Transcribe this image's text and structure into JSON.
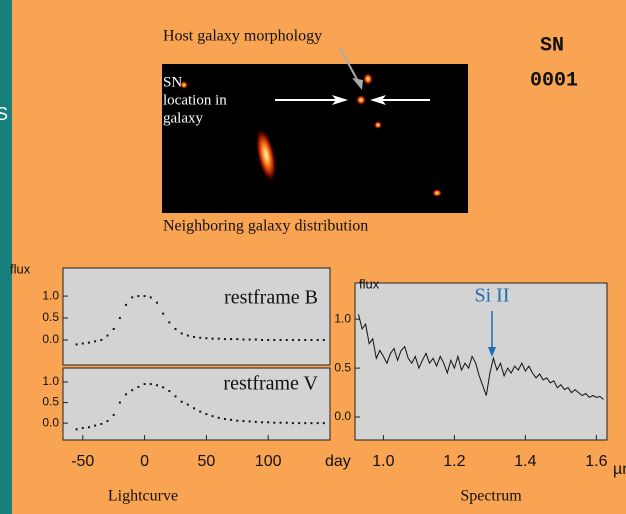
{
  "edge_text": "S",
  "header": {
    "title": "Host galaxy morphology",
    "sn_label": "SN",
    "sn_id": "0001",
    "location_label": [
      "SN",
      "location in",
      "galaxy"
    ],
    "caption": "Neighboring galaxy distribution"
  },
  "chart_data": [
    {
      "type": "scatter",
      "ylabel": "flux",
      "series": [
        {
          "name": "restframe B",
          "color": "#111111",
          "x": [
            -55,
            -50,
            -45,
            -40,
            -35,
            -30,
            -25,
            -20,
            -15,
            -10,
            -5,
            0,
            5,
            10,
            15,
            20,
            25,
            30,
            35,
            40,
            45,
            50,
            55,
            60,
            65,
            70,
            75,
            80,
            85,
            90,
            95,
            100,
            105,
            110,
            115,
            120,
            125,
            130,
            135,
            140,
            145
          ],
          "values": [
            -0.1,
            -0.08,
            -0.06,
            -0.03,
            0.0,
            0.1,
            0.25,
            0.5,
            0.8,
            0.97,
            1.0,
            1.0,
            0.97,
            0.85,
            0.6,
            0.4,
            0.25,
            0.15,
            0.1,
            0.07,
            0.05,
            0.04,
            0.03,
            0.03,
            0.02,
            0.02,
            0.02,
            0.01,
            0.01,
            0.01,
            0.0,
            0.0,
            0.0,
            0.0,
            0.0,
            0.0,
            0.0,
            0.0,
            0.0,
            0.0,
            0.0
          ]
        }
      ],
      "xlim": [
        -66,
        150
      ],
      "ylim": [
        -0.57,
        1.64
      ],
      "yticks": [
        {
          "value": 1,
          "label": "1.0"
        },
        {
          "value": 0.5,
          "label": "0.5"
        },
        {
          "value": 0,
          "label": "0.0"
        }
      ]
    },
    {
      "type": "scatter",
      "xlabel": "day",
      "caption": "Lightcurve",
      "series": [
        {
          "name": "restframe V",
          "color": "#111111",
          "x": [
            -55,
            -50,
            -45,
            -40,
            -35,
            -30,
            -25,
            -20,
            -15,
            -10,
            -5,
            0,
            5,
            10,
            15,
            20,
            25,
            30,
            35,
            40,
            45,
            50,
            55,
            60,
            65,
            70,
            75,
            80,
            85,
            90,
            95,
            100,
            105,
            110,
            115,
            120,
            125,
            130,
            135,
            140,
            145
          ],
          "values": [
            -0.15,
            -0.12,
            -0.1,
            -0.06,
            -0.02,
            0.05,
            0.2,
            0.5,
            0.7,
            0.8,
            0.88,
            0.95,
            0.95,
            0.92,
            0.87,
            0.78,
            0.65,
            0.52,
            0.45,
            0.36,
            0.28,
            0.22,
            0.17,
            0.13,
            0.1,
            0.08,
            0.06,
            0.05,
            0.04,
            0.03,
            0.02,
            0.02,
            0.01,
            0.01,
            0.01,
            0.0,
            0.0,
            0.0,
            0.0,
            0.0,
            0.0
          ]
        }
      ],
      "xlim": [
        -66,
        150
      ],
      "ylim": [
        -0.41,
        1.34
      ],
      "xticks": [
        -50,
        0,
        50,
        100
      ],
      "yticks": [
        {
          "value": 1,
          "label": "1.0"
        },
        {
          "value": 0.5,
          "label": "0.5"
        },
        {
          "value": 0,
          "label": "0.0"
        }
      ]
    },
    {
      "type": "line",
      "ylabel": "flux",
      "xlabel": "µm",
      "caption": "Spectrum",
      "annotation": "Si II",
      "series": [
        {
          "name": null,
          "color": "#111111",
          "x": [
            0.93,
            0.94,
            0.95,
            0.96,
            0.97,
            0.98,
            0.99,
            1.0,
            1.01,
            1.02,
            1.03,
            1.04,
            1.05,
            1.06,
            1.07,
            1.08,
            1.09,
            1.1,
            1.11,
            1.12,
            1.13,
            1.14,
            1.15,
            1.16,
            1.17,
            1.18,
            1.19,
            1.2,
            1.21,
            1.22,
            1.23,
            1.24,
            1.25,
            1.26,
            1.27,
            1.28,
            1.29,
            1.3,
            1.31,
            1.32,
            1.33,
            1.34,
            1.35,
            1.36,
            1.37,
            1.38,
            1.39,
            1.4,
            1.41,
            1.42,
            1.43,
            1.44,
            1.45,
            1.46,
            1.47,
            1.48,
            1.49,
            1.5,
            1.51,
            1.52,
            1.53,
            1.54,
            1.55,
            1.56,
            1.57,
            1.58,
            1.59,
            1.6,
            1.61,
            1.62
          ],
          "values": [
            1.05,
            0.9,
            0.95,
            0.75,
            0.8,
            0.6,
            0.68,
            0.62,
            0.55,
            0.65,
            0.7,
            0.58,
            0.68,
            0.72,
            0.6,
            0.55,
            0.62,
            0.5,
            0.58,
            0.65,
            0.55,
            0.6,
            0.52,
            0.62,
            0.55,
            0.45,
            0.58,
            0.5,
            0.62,
            0.48,
            0.55,
            0.5,
            0.62,
            0.55,
            0.42,
            0.32,
            0.22,
            0.45,
            0.6,
            0.48,
            0.55,
            0.42,
            0.5,
            0.45,
            0.52,
            0.48,
            0.55,
            0.47,
            0.52,
            0.45,
            0.4,
            0.44,
            0.38,
            0.4,
            0.35,
            0.37,
            0.3,
            0.33,
            0.28,
            0.3,
            0.25,
            0.28,
            0.25,
            0.22,
            0.24,
            0.2,
            0.22,
            0.2,
            0.21,
            0.18
          ]
        }
      ],
      "xlim": [
        0.92,
        1.63
      ],
      "ylim": [
        -0.235,
        1.37
      ],
      "xticks": [
        {
          "value": 1,
          "label": "1.0"
        },
        1.2,
        1.4,
        1.6
      ],
      "yticks": [
        {
          "value": 1,
          "label": "1.0"
        },
        {
          "value": 0.5,
          "label": "0.5"
        },
        {
          "value": 0,
          "label": "0.0"
        }
      ]
    }
  ]
}
